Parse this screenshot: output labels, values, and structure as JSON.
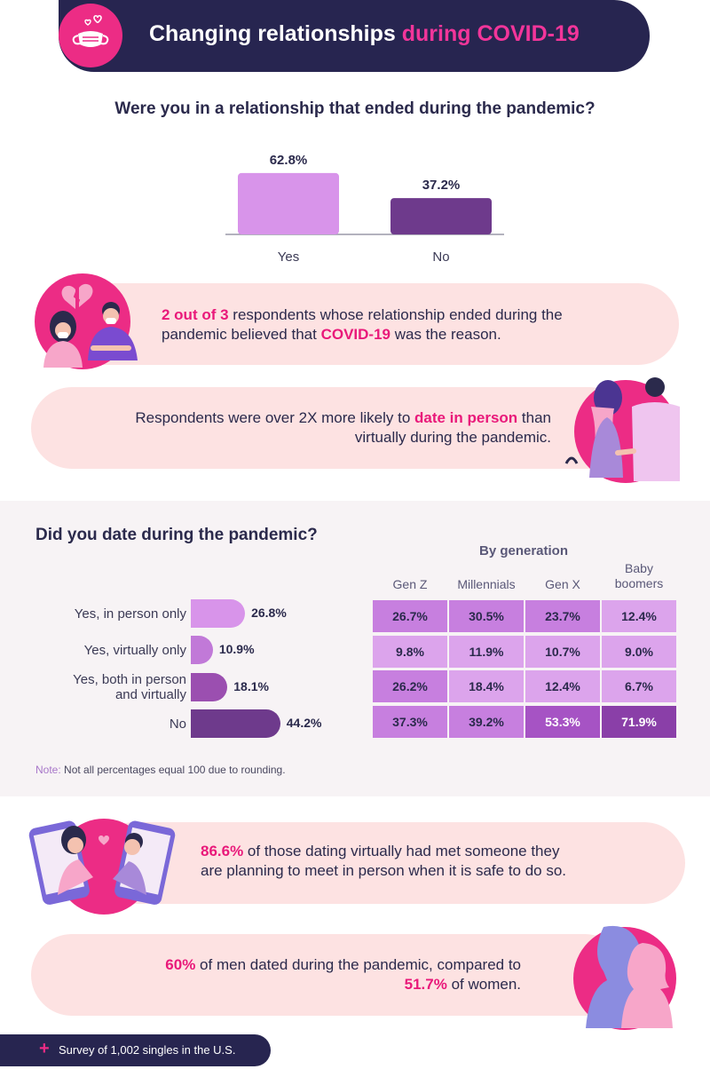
{
  "header": {
    "title_main": "Changing relationships",
    "title_highlight": "during COVID-19",
    "icon": "face-mask-hearts-icon"
  },
  "section1": {
    "question": "Were you in a relationship that ended during the pandemic?"
  },
  "callouts": {
    "covid_reason": {
      "highlight1": "2 out of 3",
      "text1": " respondents whose relationship ended during the",
      "text2": "pandemic believed that ",
      "highlight2": "COVID-19",
      "text3": " was the reason.",
      "icon": "breakup-couple-icon"
    },
    "date_in_person": {
      "text1": "Respondents were over 2X more likely to ",
      "highlight": "date in person",
      "text2": " than",
      "text3": "virtually during the pandemic.",
      "icon": "couple-holding-hands-icon"
    },
    "virtual_meet": {
      "highlight": "86.6%",
      "text1": " of those dating virtually had met someone they",
      "text2": "are planning to meet in person when it is safe to do so.",
      "icon": "phones-virtual-date-icon"
    },
    "men_women": {
      "highlight1": "60%",
      "text1": " of men dated during the pandemic, compared to",
      "highlight2": "51.7%",
      "text2": " of women.",
      "icon": "man-woman-silhouette-icon"
    }
  },
  "section2": {
    "question": "Did you date during the pandemic?",
    "generation_title": "By generation",
    "note_label": "Note:",
    "note_text": " Not all percentages equal 100 due to rounding."
  },
  "footer": {
    "text": "Survey of 1,002 singles in the U.S."
  },
  "colors": {
    "navy": "#272550",
    "pink": "#ec2c85",
    "light_purple": "#d894ea",
    "mid_purple": "#b968d0",
    "deep_purple": "#9b4fb0",
    "dark_purple": "#6e3a8c",
    "pill_bg": "#fde2e2"
  },
  "chart_data": [
    {
      "type": "bar",
      "title": "Were you in a relationship that ended during the pandemic?",
      "categories": [
        "Yes",
        "No"
      ],
      "values": [
        62.8,
        37.2
      ],
      "value_labels": [
        "62.8%",
        "37.2%"
      ],
      "colors": [
        "#d894ea",
        "#6e3a8c"
      ],
      "ylim": [
        0,
        100
      ]
    },
    {
      "type": "bar",
      "orientation": "horizontal",
      "title": "Did you date during the pandemic?",
      "categories": [
        "Yes, in person only",
        "Yes, virtually only",
        "Yes, both in person and virtually",
        "No"
      ],
      "category_lines": [
        [
          "Yes, in person only"
        ],
        [
          "Yes, virtually only"
        ],
        [
          "Yes, both in person",
          "and virtually"
        ],
        [
          "No"
        ]
      ],
      "values": [
        26.8,
        10.9,
        18.1,
        44.2
      ],
      "value_labels": [
        "26.8%",
        "10.9%",
        "18.1%",
        "44.2%"
      ],
      "colors": [
        "#d894ea",
        "#c179d8",
        "#9b4fb0",
        "#6e3a8c"
      ],
      "xlim": [
        0,
        50
      ]
    },
    {
      "type": "heatmap",
      "title": "By generation",
      "columns": [
        "Gen Z",
        "Millennials",
        "Gen X",
        "Baby boomers"
      ],
      "column_lines": [
        [
          "Gen Z"
        ],
        [
          "Millennials"
        ],
        [
          "Gen X"
        ],
        [
          "Baby",
          "boomers"
        ]
      ],
      "rows": [
        "Yes, in person only",
        "Yes, virtually only",
        "Yes, both in person and virtually",
        "No"
      ],
      "values": [
        [
          26.7,
          30.5,
          23.7,
          12.4
        ],
        [
          9.8,
          11.9,
          10.7,
          9.0
        ],
        [
          26.2,
          18.4,
          12.4,
          6.7
        ],
        [
          37.3,
          39.2,
          53.3,
          71.9
        ]
      ],
      "value_labels": [
        [
          "26.7%",
          "30.5%",
          "23.7%",
          "12.4%"
        ],
        [
          "9.8%",
          "11.9%",
          "10.7%",
          "9.0%"
        ],
        [
          "26.2%",
          "18.4%",
          "12.4%",
          "6.7%"
        ],
        [
          "37.3%",
          "39.2%",
          "53.3%",
          "71.9%"
        ]
      ]
    }
  ]
}
